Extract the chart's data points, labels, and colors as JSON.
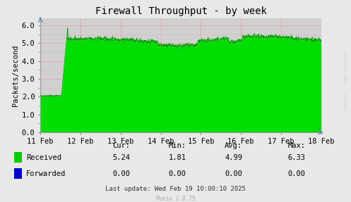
{
  "title": "Firewall Throughput - by week",
  "ylabel": "Packets/second",
  "bg_color": "#e8e8e8",
  "plot_bg_color": "#d0d0d0",
  "fill_color": "#00dd00",
  "line_color": "#009900",
  "ylim": [
    0.0,
    6.4
  ],
  "yticks": [
    0.0,
    1.0,
    2.0,
    3.0,
    4.0,
    5.0,
    6.0
  ],
  "x_labels": [
    "11 Feb",
    "12 Feb",
    "13 Feb",
    "14 Feb",
    "15 Feb",
    "16 Feb",
    "17 Feb",
    "18 Feb"
  ],
  "legend_items": [
    {
      "label": "Received",
      "color": "#00cc00"
    },
    {
      "label": "Forwarded",
      "color": "#0000cc"
    }
  ],
  "col_headers": [
    "Cur:",
    "Min:",
    "Avg:",
    "Max:"
  ],
  "row1_label": "Received",
  "row2_label": "Forwarded",
  "row1_vals": [
    "5.24",
    "1.81",
    "4.99",
    "6.33"
  ],
  "row2_vals": [
    "0.00",
    "0.00",
    "0.00",
    "0.00"
  ],
  "footer": "Last update: Wed Feb 19 10:00:10 2025",
  "munin_version": "Munin 2.0.75",
  "side_text": "RRDTOOL / TOBI OETIKER",
  "title_fontsize": 10,
  "axis_fontsize": 7.5,
  "legend_fontsize": 7.5
}
